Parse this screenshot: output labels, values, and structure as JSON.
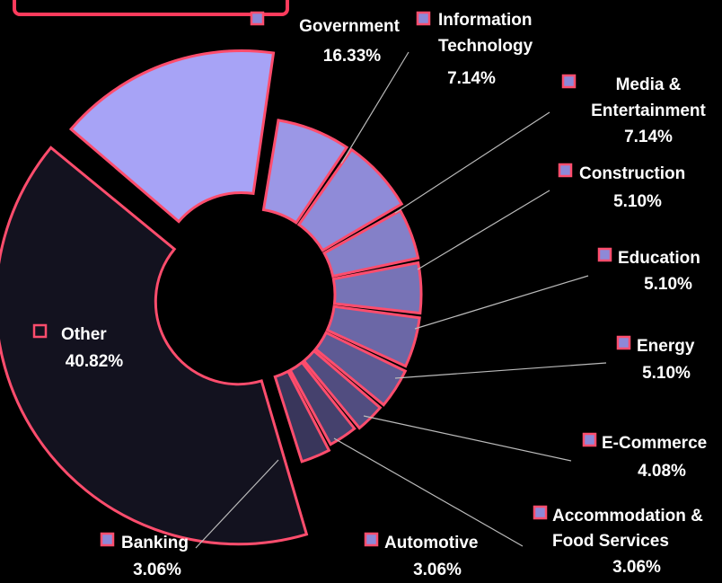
{
  "chart_data": {
    "type": "pie",
    "variant": "exploded-donut",
    "title": "",
    "slices": [
      {
        "label": "Government",
        "value": 16.33,
        "value_text": "16.33%",
        "color": "#a7a3f6"
      },
      {
        "label": "Information Technology",
        "value": 7.14,
        "value_text": "7.14%",
        "color": "#9b97e6"
      },
      {
        "label": "Media & Entertainment",
        "value": 7.14,
        "value_text": "7.14%",
        "color": "#8f8bd8"
      },
      {
        "label": "Construction",
        "value": 5.1,
        "value_text": "5.10%",
        "color": "#8480c8"
      },
      {
        "label": "Education",
        "value": 5.1,
        "value_text": "5.10%",
        "color": "#7773b6"
      },
      {
        "label": "Energy",
        "value": 5.1,
        "value_text": "5.10%",
        "color": "#6b67a6"
      },
      {
        "label": "E-Commerce",
        "value": 4.08,
        "value_text": "4.08%",
        "color": "#5e5a94"
      },
      {
        "label": "Accommodation & Food Services",
        "value": 3.06,
        "value_text": "3.06%",
        "color": "#514d80"
      },
      {
        "label": "Automotive",
        "value": 3.06,
        "value_text": "3.06%",
        "color": "#45416d"
      },
      {
        "label": "Banking",
        "value": 3.06,
        "value_text": "3.06%",
        "color": "#39365b"
      },
      {
        "label": "Other",
        "value": 40.82,
        "value_text": "40.82%",
        "color": "#13121f"
      }
    ],
    "legend": "labels-beside-slices",
    "slice_outline_color": "#ff4d6d",
    "leader_line_color": "#bbbbbb"
  }
}
